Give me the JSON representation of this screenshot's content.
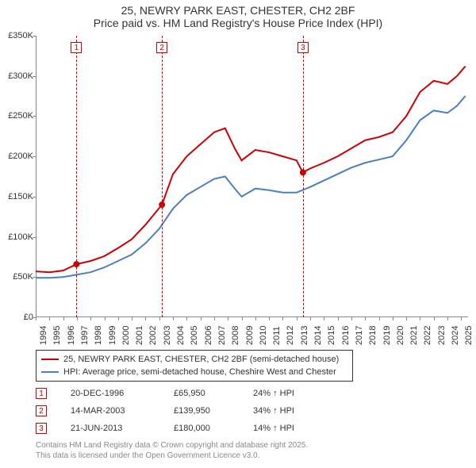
{
  "title_line1": "25, NEWRY PARK EAST, CHESTER, CH2 2BF",
  "title_line2": "Price paid vs. HM Land Registry's House Price Index (HPI)",
  "chart": {
    "type": "line",
    "background_color": "#ffffff",
    "axis_color": "#888888",
    "x_range": [
      1994,
      2025.5
    ],
    "y_range": [
      0,
      350000
    ],
    "y_ticks": [
      0,
      50000,
      100000,
      150000,
      200000,
      250000,
      300000,
      350000
    ],
    "y_tick_labels": [
      "£0",
      "£50K",
      "£100K",
      "£150K",
      "£200K",
      "£250K",
      "£300K",
      "£350K"
    ],
    "x_ticks": [
      1994,
      1995,
      1996,
      1997,
      1998,
      1999,
      2000,
      2001,
      2002,
      2003,
      2004,
      2005,
      2006,
      2007,
      2008,
      2009,
      2010,
      2011,
      2012,
      2013,
      2014,
      2015,
      2016,
      2017,
      2018,
      2019,
      2020,
      2021,
      2022,
      2023,
      2024,
      2025
    ],
    "series": [
      {
        "name": "25, NEWRY PARK EAST, CHESTER, CH2 2BF (semi-detached house)",
        "color": "#cc0000",
        "width": 2,
        "data": [
          [
            1994,
            57000
          ],
          [
            1995,
            56000
          ],
          [
            1996,
            58000
          ],
          [
            1996.97,
            65950
          ],
          [
            1998,
            70000
          ],
          [
            1999,
            76000
          ],
          [
            2000,
            86000
          ],
          [
            2001,
            97000
          ],
          [
            2002,
            115000
          ],
          [
            2003.2,
            139950
          ],
          [
            2004,
            178000
          ],
          [
            2005,
            200000
          ],
          [
            2006,
            215000
          ],
          [
            2007,
            230000
          ],
          [
            2007.8,
            235000
          ],
          [
            2008.5,
            210000
          ],
          [
            2009,
            195000
          ],
          [
            2010,
            208000
          ],
          [
            2011,
            205000
          ],
          [
            2012,
            200000
          ],
          [
            2013,
            195000
          ],
          [
            2013.47,
            180000
          ],
          [
            2014,
            185000
          ],
          [
            2015,
            192000
          ],
          [
            2016,
            200000
          ],
          [
            2017,
            210000
          ],
          [
            2018,
            220000
          ],
          [
            2019,
            224000
          ],
          [
            2020,
            230000
          ],
          [
            2021,
            250000
          ],
          [
            2022,
            280000
          ],
          [
            2023,
            294000
          ],
          [
            2024,
            290000
          ],
          [
            2024.7,
            300000
          ],
          [
            2025.3,
            312000
          ]
        ]
      },
      {
        "name": "HPI: Average price, semi-detached house, Cheshire West and Chester",
        "color": "#4a7fc1",
        "width": 2,
        "data": [
          [
            1994,
            49000
          ],
          [
            1995,
            49000
          ],
          [
            1996,
            50000
          ],
          [
            1997,
            53000
          ],
          [
            1998,
            56000
          ],
          [
            1999,
            62000
          ],
          [
            2000,
            70000
          ],
          [
            2001,
            78000
          ],
          [
            2002,
            92000
          ],
          [
            2003,
            110000
          ],
          [
            2004,
            135000
          ],
          [
            2005,
            152000
          ],
          [
            2006,
            162000
          ],
          [
            2007,
            172000
          ],
          [
            2007.8,
            175000
          ],
          [
            2008.5,
            160000
          ],
          [
            2009,
            150000
          ],
          [
            2010,
            160000
          ],
          [
            2011,
            158000
          ],
          [
            2012,
            155000
          ],
          [
            2013,
            155000
          ],
          [
            2014,
            162000
          ],
          [
            2015,
            170000
          ],
          [
            2016,
            178000
          ],
          [
            2017,
            186000
          ],
          [
            2018,
            192000
          ],
          [
            2019,
            196000
          ],
          [
            2020,
            200000
          ],
          [
            2021,
            220000
          ],
          [
            2022,
            245000
          ],
          [
            2023,
            257000
          ],
          [
            2024,
            254000
          ],
          [
            2024.7,
            263000
          ],
          [
            2025.3,
            275000
          ]
        ]
      }
    ],
    "markers": [
      {
        "n": "1",
        "x": 1996.97,
        "y": 65950
      },
      {
        "n": "2",
        "x": 2003.2,
        "y": 139950
      },
      {
        "n": "3",
        "x": 2013.47,
        "y": 180000
      }
    ]
  },
  "legend": {
    "items": [
      {
        "color": "#cc0000",
        "label": "25, NEWRY PARK EAST, CHESTER, CH2 2BF (semi-detached house)"
      },
      {
        "color": "#4a7fc1",
        "label": "HPI: Average price, semi-detached house, Cheshire West and Chester"
      }
    ]
  },
  "sales": [
    {
      "n": "1",
      "date": "20-DEC-1996",
      "price": "£65,950",
      "change": "24% ↑ HPI"
    },
    {
      "n": "2",
      "date": "14-MAR-2003",
      "price": "£139,950",
      "change": "34% ↑ HPI"
    },
    {
      "n": "3",
      "date": "21-JUN-2013",
      "price": "£180,000",
      "change": "14% ↑ HPI"
    }
  ],
  "footer_line1": "Contains HM Land Registry data © Crown copyright and database right 2025.",
  "footer_line2": "This data is licensed under the Open Government Licence v3.0."
}
